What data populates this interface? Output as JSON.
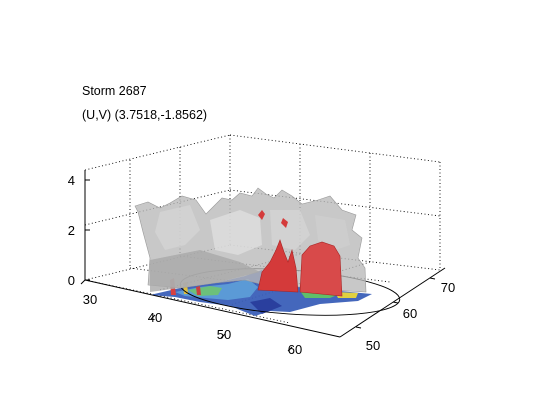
{
  "chart_data": {
    "type": "3d-surface",
    "title": "Storm 2687",
    "subtitle": "(U,V) (3.7518,-1.8562)",
    "xlabel": "",
    "ylabel": "",
    "zlabel": "",
    "x_ticks": [
      "30",
      "40",
      "50",
      "60"
    ],
    "y_ticks": [
      "50",
      "60",
      "70"
    ],
    "z_ticks": [
      "0",
      "2",
      "4"
    ],
    "xlim": [
      30,
      65
    ],
    "ylim": [
      48,
      72
    ],
    "zlim": [
      0,
      4.3
    ],
    "grid": true,
    "colors": {
      "translucent_surface": "#b4b4b4",
      "high_core": "#d43a3a",
      "floor_low": "#2a3f9e",
      "floor_mid": "#3f8fd0",
      "floor_high": "#5fbf6a",
      "floor_peak": "#e0d040"
    }
  }
}
